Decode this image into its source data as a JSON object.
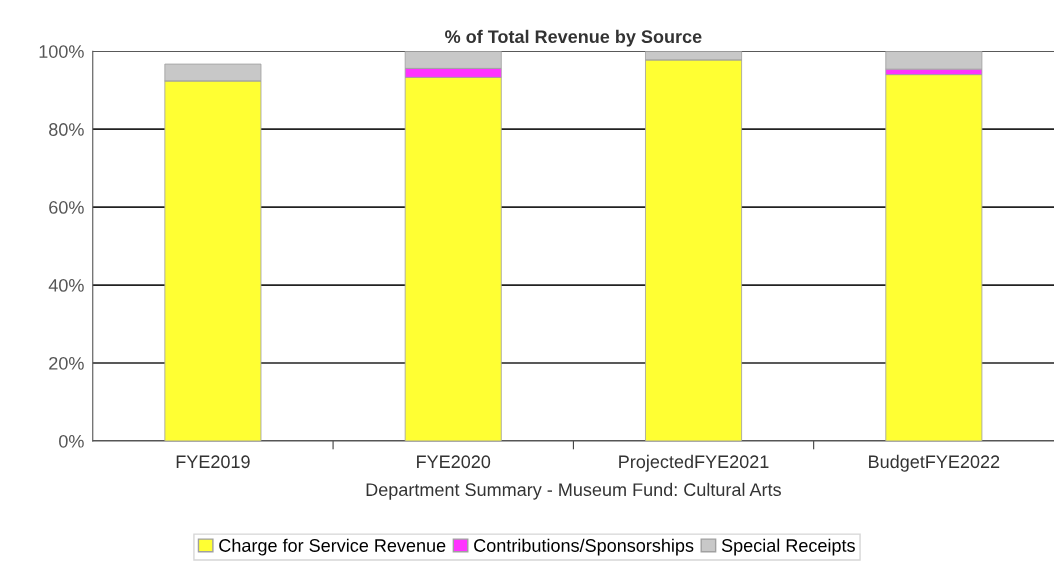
{
  "chart_data": {
    "type": "bar",
    "stacked": true,
    "title": "% of Total Revenue by Source",
    "xlabel": "Department Summary - Museum Fund: Cultural Arts",
    "categories": [
      "FYE2019",
      "FYE2020",
      "ProjectedFYE2021",
      "BudgetFYE2022"
    ],
    "series": [
      {
        "name": "Charge for Service Revenue",
        "color": "#ffff33",
        "values": [
          92.4,
          93.3,
          97.8,
          94.0
        ]
      },
      {
        "name": "Contributions/Sponsorships",
        "color": "#ff33ff",
        "values": [
          0,
          2.3,
          0,
          1.4
        ]
      },
      {
        "name": "Special Receipts",
        "color": "#c8c8c8",
        "values": [
          4.3,
          4.4,
          2.2,
          4.6
        ]
      }
    ],
    "ylim": [
      0,
      100
    ],
    "yticks": [
      {
        "value": 0,
        "label": "0%"
      },
      {
        "value": 20,
        "label": "20%"
      },
      {
        "value": 40,
        "label": "40%"
      },
      {
        "value": 60,
        "label": "60%"
      },
      {
        "value": 80,
        "label": "80%"
      },
      {
        "value": 100,
        "label": "100%"
      }
    ],
    "grid": "y",
    "legend": "bottom"
  }
}
